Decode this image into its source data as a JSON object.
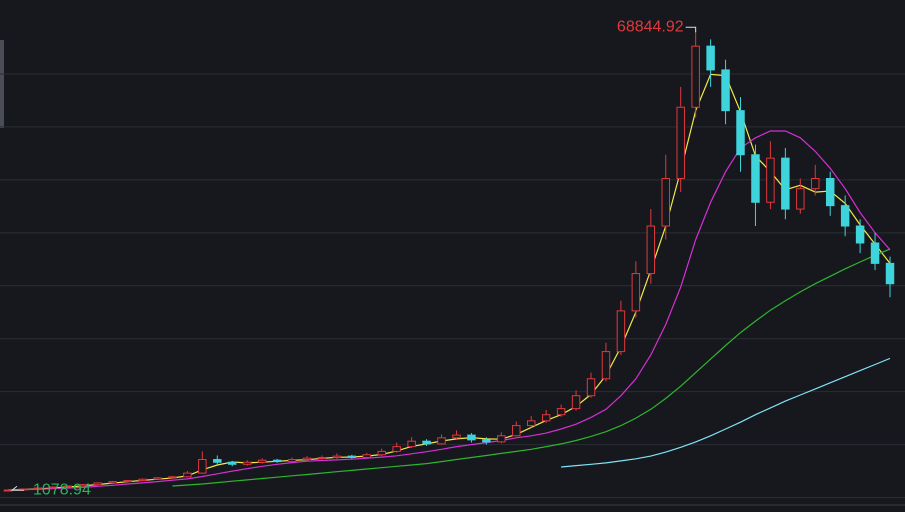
{
  "chart_data": {
    "type": "candlestick",
    "up_color": "#e0393c",
    "down_color": "#3fd4dc",
    "high_label_color": "#e0393c",
    "low_label_color": "#2db35a",
    "ylim": [
      -1100,
      73300
    ],
    "yticks": [
      0,
      7800,
      15600,
      23400,
      31200,
      39000,
      46800,
      54600,
      62400
    ],
    "grid": true,
    "open": [
      1090,
      1110,
      1250,
      1400,
      1550,
      1700,
      1900,
      2150,
      2350,
      2500,
      2700,
      2900,
      3050,
      3600,
      5600,
      5200,
      4900,
      5200,
      5500,
      5300,
      5600,
      5800,
      5900,
      6100,
      5900,
      6300,
      6800,
      7500,
      8300,
      7900,
      8800,
      9200,
      8500,
      8200,
      9100,
      10600,
      11300,
      12200,
      13100,
      15000,
      17500,
      21500,
      27500,
      33000,
      40000,
      47000,
      57500,
      66500,
      63000,
      57000,
      50500,
      43500,
      50000,
      42500,
      45500,
      47000,
      43000,
      40000,
      37500,
      34500
    ],
    "high": [
      1160,
      1290,
      1450,
      1600,
      1760,
      1980,
      2250,
      2450,
      2600,
      2820,
      3000,
      3200,
      3900,
      6800,
      6200,
      5400,
      5500,
      5800,
      5700,
      5900,
      6100,
      6200,
      6500,
      6300,
      6600,
      7200,
      8100,
      8900,
      8600,
      9300,
      9900,
      9500,
      8900,
      9600,
      11200,
      12000,
      12900,
      13700,
      15800,
      18400,
      22800,
      29000,
      34800,
      42500,
      50500,
      60500,
      68844.92,
      67500,
      64500,
      59000,
      52000,
      52500,
      51500,
      47000,
      49000,
      48000,
      44500,
      41000,
      39000,
      35500
    ],
    "low": [
      1078.94,
      1090,
      1220,
      1360,
      1500,
      1650,
      1850,
      2080,
      2280,
      2420,
      2620,
      2800,
      2950,
      3500,
      4900,
      4600,
      4700,
      5000,
      5100,
      5200,
      5400,
      5600,
      5700,
      5700,
      5800,
      6100,
      6600,
      7300,
      7600,
      7800,
      8600,
      8100,
      7800,
      8000,
      9000,
      10300,
      11000,
      11900,
      12800,
      14700,
      17100,
      21000,
      26500,
      31500,
      38000,
      45000,
      56000,
      60500,
      55000,
      48000,
      40000,
      42500,
      41000,
      41800,
      44500,
      41500,
      38500,
      36000,
      33500,
      29500
    ],
    "close": [
      1110,
      1250,
      1400,
      1550,
      1700,
      1900,
      2150,
      2350,
      2500,
      2700,
      2900,
      3050,
      3600,
      5600,
      5200,
      4900,
      5200,
      5500,
      5300,
      5600,
      5800,
      5900,
      6100,
      5900,
      6300,
      6800,
      7500,
      8300,
      7900,
      8800,
      9200,
      8500,
      8200,
      9100,
      10600,
      11300,
      12200,
      13100,
      15000,
      17500,
      21500,
      27500,
      33000,
      40000,
      47000,
      57500,
      66500,
      63000,
      57000,
      50500,
      43500,
      50000,
      42500,
      45500,
      47000,
      43000,
      40000,
      37500,
      34500,
      31500
    ],
    "series": [
      {
        "color": "#f2e84a",
        "values": [
          1110,
          1180,
          1253,
          1400,
          1550,
          1717,
          1917,
          2133,
          2333,
          2517,
          2700,
          2883,
          3183,
          4083,
          4800,
          5233,
          5100,
          5200,
          5333,
          5467,
          5567,
          5767,
          5933,
          5967,
          6100,
          6333,
          6867,
          7533,
          7900,
          8333,
          8633,
          8833,
          8633,
          8600,
          9300,
          10333,
          11367,
          12200,
          13433,
          15200,
          18000,
          22167,
          27333,
          33500,
          40000,
          48167,
          57000,
          62333,
          62167,
          56833,
          50333,
          48000,
          45333,
          46000,
          45000,
          45167,
          43333,
          40167,
          37333,
          34500
        ]
      },
      {
        "color": "#d62fd6",
        "values": [
          1110,
          1150,
          1200,
          1300,
          1400,
          1500,
          1650,
          1800,
          2000,
          2150,
          2350,
          2550,
          2750,
          3100,
          3500,
          3900,
          4250,
          4600,
          4900,
          5150,
          5350,
          5450,
          5550,
          5650,
          5800,
          5950,
          6150,
          6450,
          6750,
          7100,
          7500,
          7800,
          8100,
          8400,
          8800,
          9100,
          9500,
          10100,
          10800,
          11800,
          13000,
          15000,
          17500,
          21000,
          25500,
          31000,
          38000,
          43500,
          48000,
          51500,
          53000,
          54000,
          54000,
          53000,
          51000,
          48500,
          45500,
          42000,
          39000,
          36500
        ]
      },
      {
        "color": "#2fb52f",
        "values": [
          null,
          null,
          null,
          null,
          null,
          null,
          null,
          null,
          null,
          null,
          null,
          1700,
          1850,
          2000,
          2200,
          2400,
          2600,
          2800,
          3000,
          3200,
          3400,
          3600,
          3800,
          4000,
          4200,
          4400,
          4600,
          4800,
          5000,
          5300,
          5600,
          5900,
          6200,
          6500,
          6800,
          7100,
          7500,
          7900,
          8400,
          9000,
          9700,
          10600,
          11700,
          13000,
          14600,
          16400,
          18400,
          20400,
          22400,
          24300,
          26000,
          27600,
          29000,
          30300,
          31500,
          32600,
          33700,
          34700,
          35700,
          36600
        ]
      },
      {
        "color": "#7fe3f5",
        "values": [
          null,
          null,
          null,
          null,
          null,
          null,
          null,
          null,
          null,
          null,
          null,
          null,
          null,
          null,
          null,
          null,
          null,
          null,
          null,
          null,
          null,
          null,
          null,
          null,
          null,
          null,
          null,
          null,
          null,
          null,
          null,
          null,
          null,
          null,
          null,
          null,
          null,
          4500,
          4700,
          4900,
          5100,
          5400,
          5700,
          6100,
          6700,
          7400,
          8200,
          9100,
          10100,
          11100,
          12200,
          13200,
          14200,
          15100,
          16000,
          16900,
          17800,
          18700,
          19600,
          20500
        ]
      }
    ]
  }
}
